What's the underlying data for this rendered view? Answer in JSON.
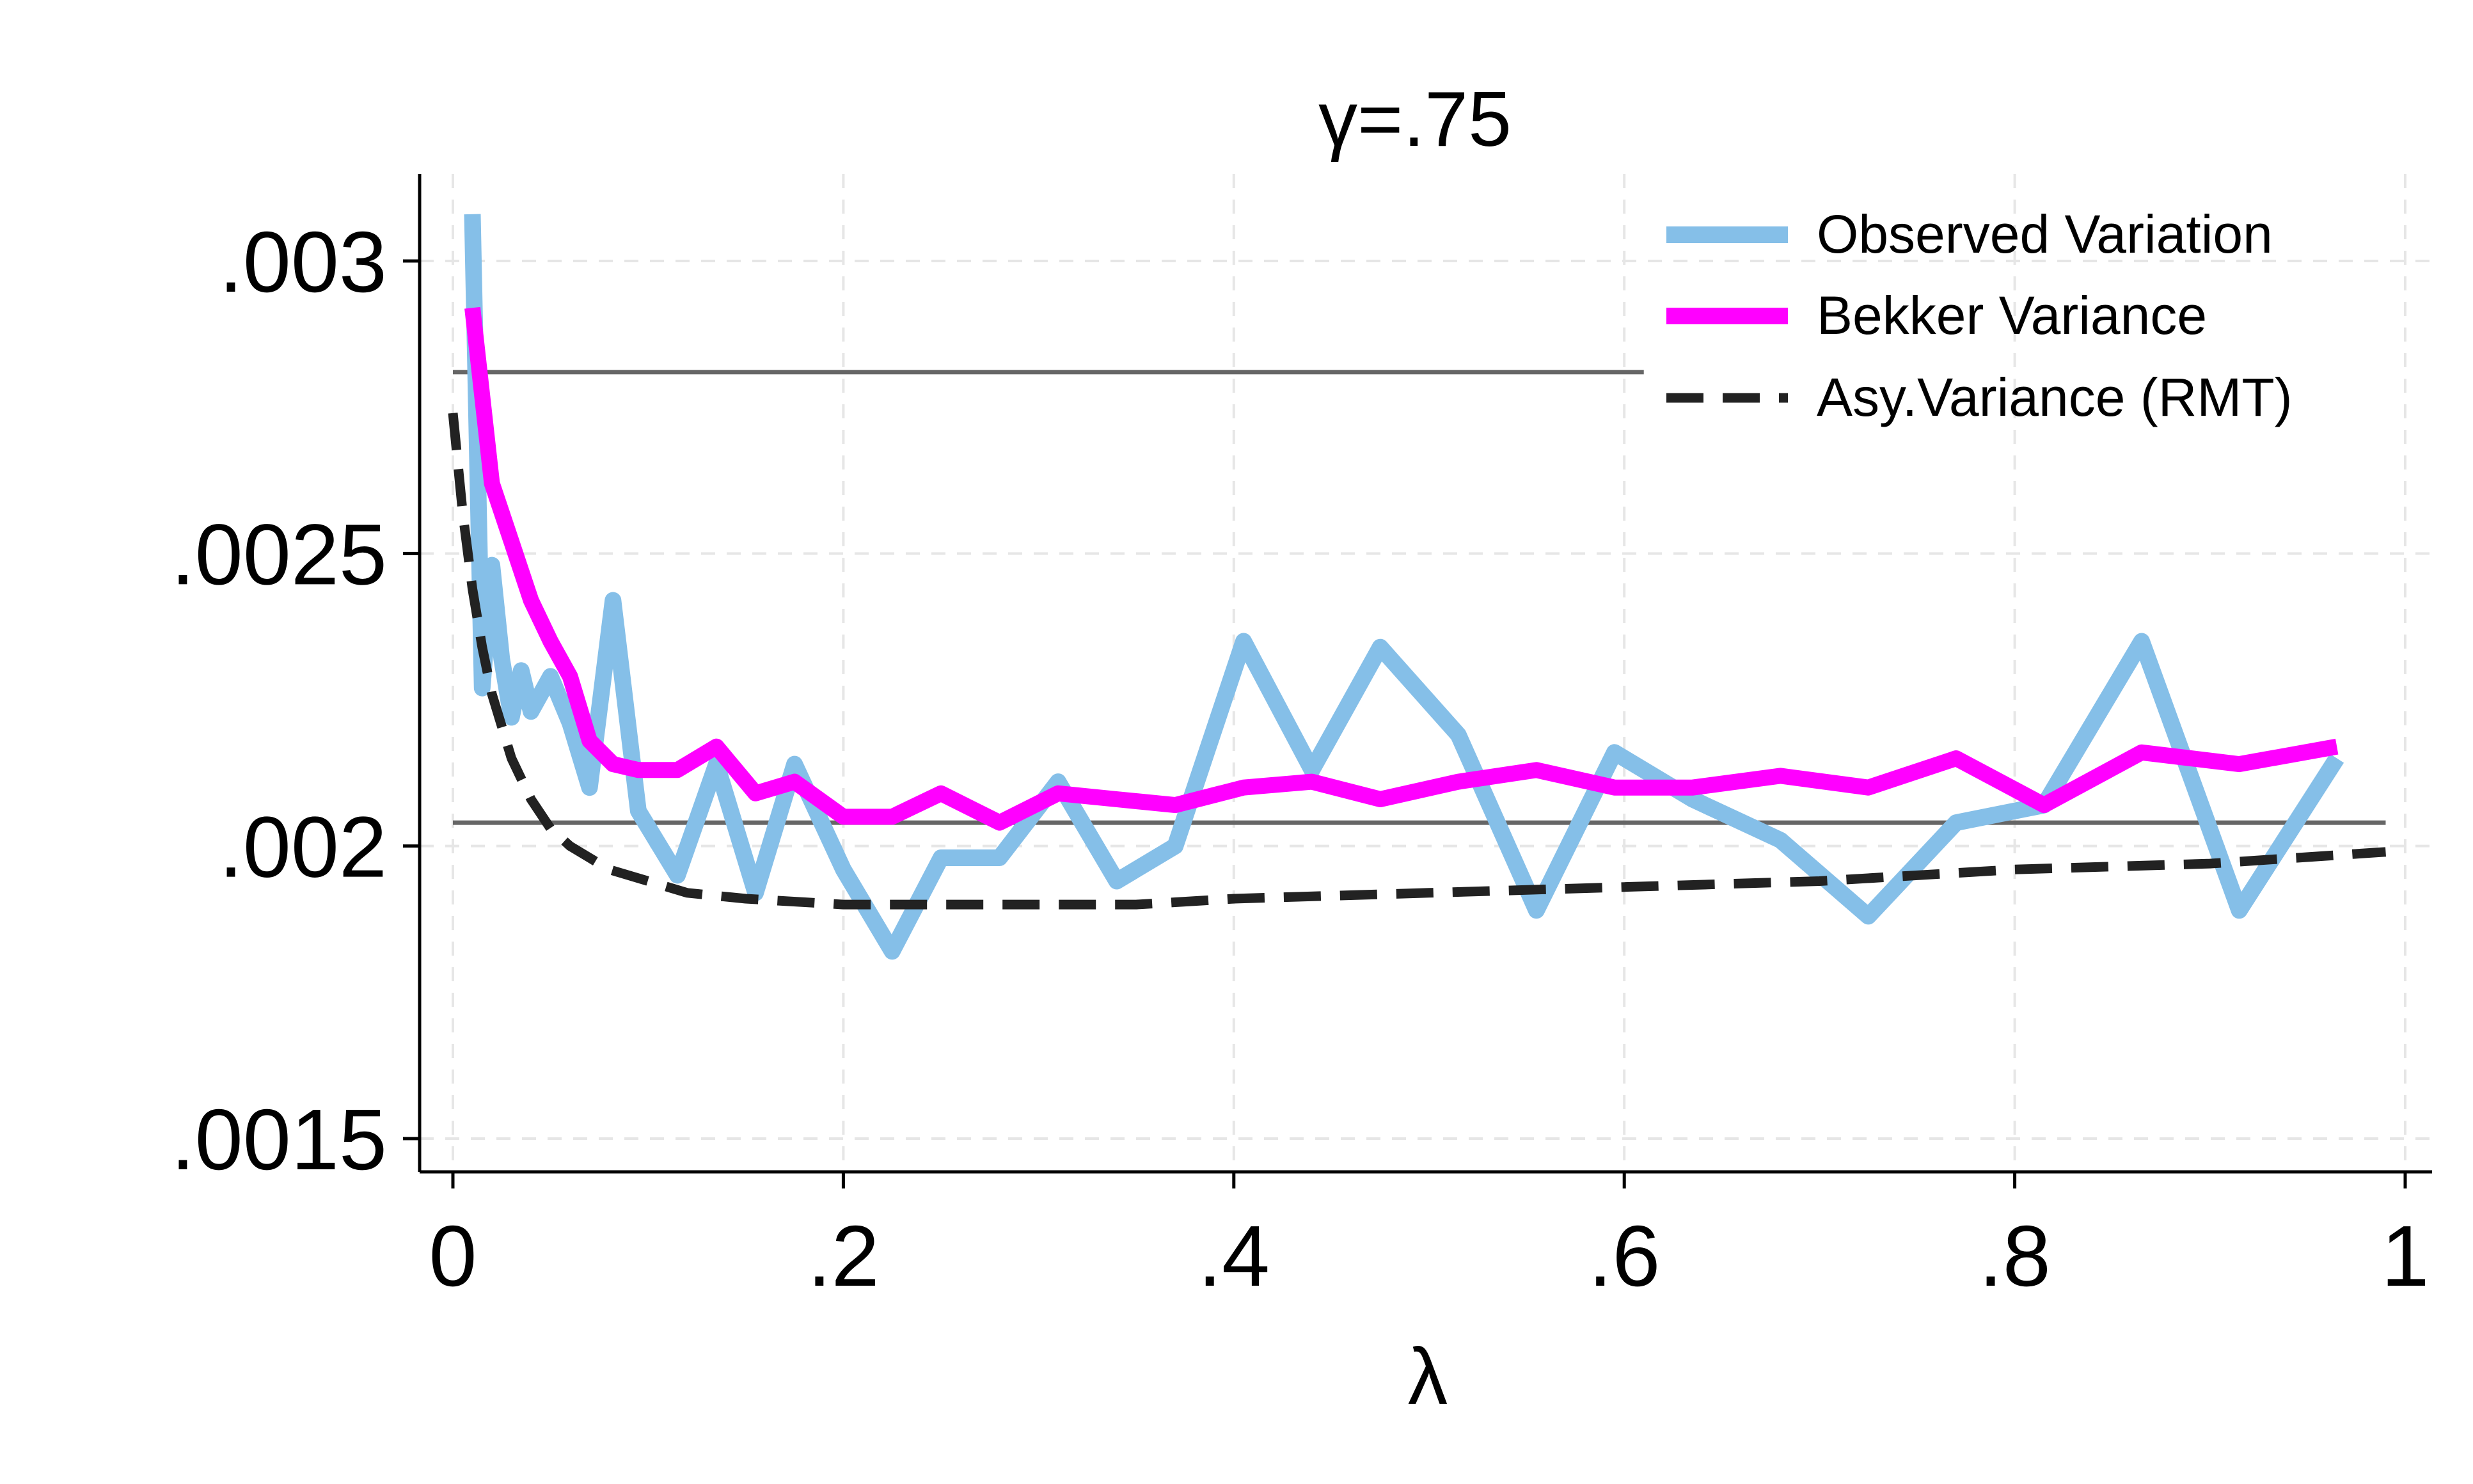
{
  "chart_data": {
    "type": "line",
    "title": "γ=.75",
    "xlabel": "λ",
    "ylabel": "",
    "xlim": [
      0,
      1
    ],
    "ylim": [
      0.0015,
      0.0031
    ],
    "xticks": [
      0,
      0.2,
      0.4,
      0.6,
      0.8,
      1
    ],
    "xtick_labels": [
      "0",
      ".2",
      ".4",
      ".6",
      ".8",
      "1"
    ],
    "yticks": [
      0.0015,
      0.002,
      0.0025,
      0.003
    ],
    "ytick_labels": [
      ".0015",
      ".002",
      ".0025",
      ".003"
    ],
    "grid": true,
    "legend_position": "top-right",
    "series": [
      {
        "name": "Observed Variation",
        "color": "#85bfe8",
        "style": "solid",
        "x": [
          0.01,
          0.015,
          0.02,
          0.025,
          0.03,
          0.035,
          0.04,
          0.05,
          0.06,
          0.07,
          0.082,
          0.095,
          0.115,
          0.135,
          0.155,
          0.175,
          0.2,
          0.225,
          0.25,
          0.28,
          0.31,
          0.34,
          0.37,
          0.405,
          0.44,
          0.475,
          0.515,
          0.555,
          0.595,
          0.635,
          0.68,
          0.725,
          0.77,
          0.815,
          0.865,
          0.915,
          0.965
        ],
        "y": [
          0.00308,
          0.00227,
          0.00248,
          0.00232,
          0.00222,
          0.0023,
          0.00223,
          0.00229,
          0.00221,
          0.0021,
          0.00242,
          0.00206,
          0.00195,
          0.00214,
          0.00192,
          0.00214,
          0.00196,
          0.00182,
          0.00198,
          0.00198,
          0.00211,
          0.00194,
          0.002,
          0.00235,
          0.00213,
          0.00234,
          0.00219,
          0.00189,
          0.00216,
          0.00208,
          0.00201,
          0.00188,
          0.00204,
          0.00207,
          0.00235,
          0.00189,
          0.00215
        ]
      },
      {
        "name": "Bekker Variance",
        "color": "#ff00ff",
        "style": "solid",
        "x": [
          0.01,
          0.02,
          0.03,
          0.04,
          0.05,
          0.06,
          0.07,
          0.082,
          0.095,
          0.115,
          0.135,
          0.155,
          0.175,
          0.2,
          0.225,
          0.25,
          0.28,
          0.31,
          0.34,
          0.37,
          0.405,
          0.44,
          0.475,
          0.515,
          0.555,
          0.595,
          0.635,
          0.68,
          0.725,
          0.77,
          0.815,
          0.865,
          0.915,
          0.965
        ],
        "y": [
          0.00292,
          0.00262,
          0.00252,
          0.00242,
          0.00235,
          0.00229,
          0.00218,
          0.00214,
          0.00213,
          0.00213,
          0.00217,
          0.00209,
          0.00211,
          0.00205,
          0.00205,
          0.00209,
          0.00204,
          0.00209,
          0.00208,
          0.00207,
          0.0021,
          0.00211,
          0.00208,
          0.00211,
          0.00213,
          0.0021,
          0.0021,
          0.00212,
          0.0021,
          0.00215,
          0.00207,
          0.00216,
          0.00214,
          0.00217
        ]
      },
      {
        "name": "Asy.Variance (RMT)",
        "color": "#222222",
        "style": "dashed",
        "x": [
          0.0,
          0.005,
          0.01,
          0.015,
          0.02,
          0.03,
          0.04,
          0.05,
          0.06,
          0.07,
          0.08,
          0.1,
          0.12,
          0.15,
          0.2,
          0.25,
          0.3,
          0.35,
          0.4,
          0.5,
          0.6,
          0.7,
          0.8,
          0.9,
          0.99
        ],
        "y": [
          0.00274,
          0.00257,
          0.00244,
          0.00234,
          0.00226,
          0.00215,
          0.00208,
          0.00203,
          0.002,
          0.00198,
          0.00196,
          0.00194,
          0.00192,
          0.00191,
          0.0019,
          0.0019,
          0.0019,
          0.0019,
          0.00191,
          0.00192,
          0.00193,
          0.00194,
          0.00196,
          0.00197,
          0.00199
        ]
      }
    ],
    "reference_lines": [
      {
        "y": 0.00281,
        "x_range": [
          0,
          0.61
        ],
        "color": "#666666"
      },
      {
        "y": 0.00204,
        "x_range": [
          0,
          0.99
        ],
        "color": "#666666"
      }
    ]
  }
}
